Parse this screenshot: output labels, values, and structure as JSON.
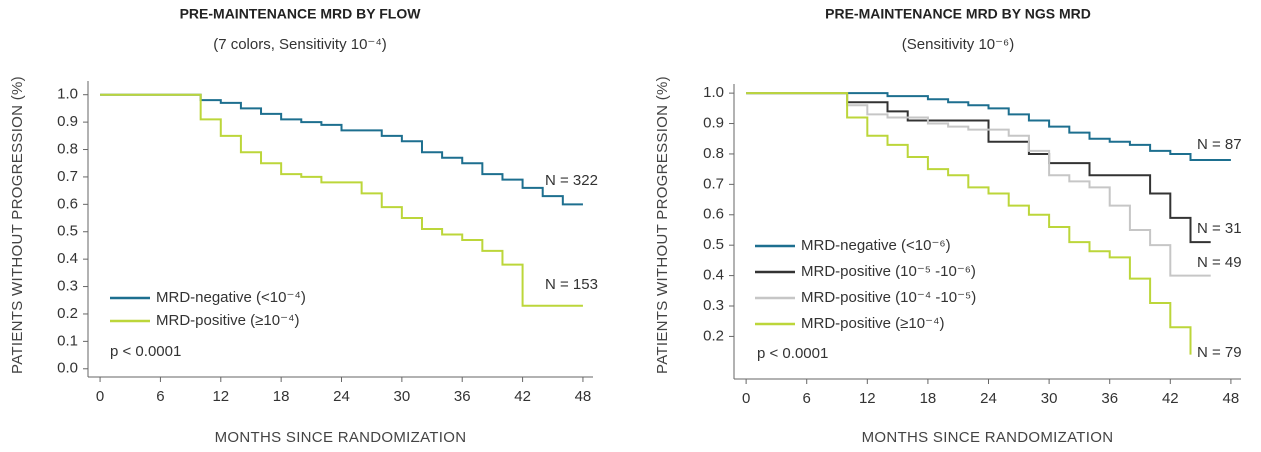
{
  "chart_data": [
    {
      "type": "line",
      "title": "PRE-MAINTENANCE MRD BY FLOW",
      "subtitle": "(7 colors, Sensitivity 10⁻⁴)",
      "x_label": "MONTHS SINCE RANDOMIZATION",
      "y_label": "PATIENTS WITHOUT PROGRESSION (%)",
      "step": true,
      "legend": "lower left",
      "x": [
        0,
        2,
        4,
        6,
        8,
        10,
        12,
        14,
        16,
        18,
        20,
        22,
        24,
        26,
        28,
        30,
        32,
        34,
        36,
        38,
        40,
        42,
        44,
        46,
        48
      ],
      "series": [
        {
          "name": "MRD-negative (<10⁻⁴)",
          "color": "#1d6f8f",
          "values": [
            1.0,
            1.0,
            1.0,
            1.0,
            1.0,
            0.98,
            0.97,
            0.95,
            0.93,
            0.91,
            0.9,
            0.89,
            0.87,
            0.87,
            0.85,
            0.83,
            0.79,
            0.77,
            0.75,
            0.71,
            0.69,
            0.66,
            0.63,
            0.6,
            0.6
          ]
        },
        {
          "name": "MRD-positive (≥10⁻⁴)",
          "color": "#bcd63a",
          "values": [
            1.0,
            1.0,
            1.0,
            1.0,
            1.0,
            0.91,
            0.85,
            0.79,
            0.75,
            0.71,
            0.7,
            0.68,
            0.68,
            0.64,
            0.59,
            0.55,
            0.51,
            0.49,
            0.47,
            0.43,
            0.38,
            0.23,
            0.23,
            0.23,
            0.23
          ]
        }
      ],
      "annotations": [
        "N = 322",
        "N = 153",
        "p < 0.0001"
      ],
      "xlim": [
        -1.2,
        49
      ],
      "xticks": [
        0,
        6,
        12,
        18,
        24,
        30,
        36,
        42,
        48
      ],
      "ylim": [
        -0.03,
        1.05
      ],
      "yticks": [
        {
          "value": 0,
          "label": "0.0"
        },
        0.1,
        0.2,
        0.3,
        0.4,
        0.5,
        0.6,
        0.7,
        0.8,
        0.9,
        {
          "value": 1,
          "label": "1.0"
        }
      ]
    },
    {
      "type": "line",
      "title": "PRE-MAINTENANCE MRD BY NGS MRD",
      "subtitle": "(Sensitivity 10⁻⁶)",
      "x_label": "MONTHS SINCE RANDOMIZATION",
      "y_label": "PATIENTS WITHOUT PROGRESSION (%)",
      "step": true,
      "legend": "center left",
      "x": [
        0,
        2,
        4,
        6,
        8,
        10,
        12,
        14,
        16,
        18,
        20,
        22,
        24,
        26,
        28,
        30,
        32,
        34,
        36,
        38,
        40,
        42,
        44,
        46,
        48
      ],
      "series": [
        {
          "name": "MRD-negative (<10⁻⁶)",
          "color": "#1d6f8f",
          "values": [
            1.0,
            1.0,
            1.0,
            1.0,
            1.0,
            1.0,
            1.0,
            0.99,
            0.99,
            0.98,
            0.97,
            0.96,
            0.95,
            0.93,
            0.91,
            0.89,
            0.87,
            0.85,
            0.84,
            0.83,
            0.81,
            0.8,
            0.78,
            0.78,
            0.78
          ]
        },
        {
          "name": "MRD-positive (10⁻⁵ -10⁻⁶)",
          "color": "#333333",
          "values": [
            1.0,
            1.0,
            1.0,
            1.0,
            1.0,
            0.97,
            0.97,
            0.94,
            0.91,
            0.91,
            0.91,
            0.91,
            0.84,
            0.84,
            0.8,
            0.77,
            0.77,
            0.73,
            0.73,
            0.73,
            0.67,
            0.59,
            0.51,
            0.51,
            null
          ]
        },
        {
          "name": "MRD-positive (10⁻⁴ -10⁻⁵)",
          "color": "#c6c6c6",
          "values": [
            1.0,
            1.0,
            1.0,
            1.0,
            1.0,
            0.96,
            0.93,
            0.92,
            0.92,
            0.9,
            0.89,
            0.88,
            0.88,
            0.86,
            0.81,
            0.73,
            0.71,
            0.69,
            0.63,
            0.55,
            0.5,
            0.4,
            0.4,
            0.4,
            null
          ]
        },
        {
          "name": "MRD-positive (≥10⁻⁴)",
          "color": "#bcd63a",
          "values": [
            1.0,
            1.0,
            1.0,
            1.0,
            1.0,
            0.92,
            0.86,
            0.83,
            0.79,
            0.75,
            0.73,
            0.69,
            0.67,
            0.63,
            0.6,
            0.56,
            0.51,
            0.48,
            0.46,
            0.39,
            0.31,
            0.23,
            0.14,
            null,
            null
          ]
        }
      ],
      "annotations": [
        "N = 87",
        "N = 31",
        "N = 49",
        "N = 79",
        "p < 0.0001"
      ],
      "xlim": [
        -1.2,
        49
      ],
      "xticks": [
        0,
        6,
        12,
        18,
        24,
        30,
        36,
        42,
        48
      ],
      "ylim": [
        0.06,
        1.03
      ],
      "yticks": [
        0.2,
        0.3,
        0.4,
        0.5,
        0.6,
        0.7,
        0.8,
        0.9,
        {
          "value": 1,
          "label": "1.0"
        }
      ]
    }
  ]
}
